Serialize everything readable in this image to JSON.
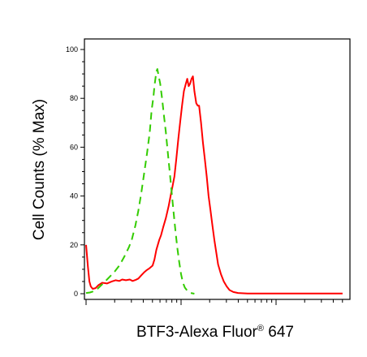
{
  "chart_data": {
    "type": "line",
    "title": "",
    "xlabel": "BTF3-Alexa Fluor",
    "xlabel_sup": "®",
    "xlabel_suffix": " 647",
    "ylabel": "Cell Counts (% Max)",
    "x_scale": "log",
    "x_tick_labels": [],
    "ylim": [
      0,
      100
    ],
    "y_ticks": [
      "0",
      "20",
      "40",
      "60",
      "80",
      "100"
    ],
    "grid": false,
    "series": [
      {
        "color": "#ff0000",
        "line_style": "solid",
        "points": [
          [
            0.0,
            20
          ],
          [
            0.02,
            11
          ],
          [
            0.035,
            5
          ],
          [
            0.05,
            3
          ],
          [
            0.07,
            2
          ],
          [
            0.1,
            2.3
          ],
          [
            0.13,
            3.5
          ],
          [
            0.17,
            4.5
          ],
          [
            0.22,
            4.2
          ],
          [
            0.27,
            5
          ],
          [
            0.31,
            5.5
          ],
          [
            0.35,
            5.2
          ],
          [
            0.38,
            5.8
          ],
          [
            0.42,
            5.5
          ],
          [
            0.46,
            5.8
          ],
          [
            0.49,
            5.2
          ],
          [
            0.52,
            5.6
          ],
          [
            0.55,
            6.2
          ],
          [
            0.58,
            7.5
          ],
          [
            0.61,
            8.7
          ],
          [
            0.64,
            9.7
          ],
          [
            0.67,
            10.5
          ],
          [
            0.7,
            11.5
          ],
          [
            0.72,
            14
          ],
          [
            0.74,
            18
          ],
          [
            0.77,
            22
          ],
          [
            0.79,
            24
          ],
          [
            0.81,
            27
          ],
          [
            0.84,
            31
          ],
          [
            0.87,
            36
          ],
          [
            0.89,
            40
          ],
          [
            0.91,
            44
          ],
          [
            0.93,
            48
          ],
          [
            0.95,
            55
          ],
          [
            0.97,
            63
          ],
          [
            0.99,
            70
          ],
          [
            1.01,
            77
          ],
          [
            1.03,
            83
          ],
          [
            1.05,
            86
          ],
          [
            1.065,
            88
          ],
          [
            1.08,
            85
          ],
          [
            1.095,
            86
          ],
          [
            1.11,
            88
          ],
          [
            1.125,
            89
          ],
          [
            1.14,
            83
          ],
          [
            1.16,
            78
          ],
          [
            1.175,
            77
          ],
          [
            1.19,
            77
          ],
          [
            1.21,
            70
          ],
          [
            1.23,
            62
          ],
          [
            1.25,
            55
          ],
          [
            1.27,
            48
          ],
          [
            1.29,
            40
          ],
          [
            1.31,
            34
          ],
          [
            1.33,
            28
          ],
          [
            1.35,
            22
          ],
          [
            1.37,
            17
          ],
          [
            1.39,
            12
          ],
          [
            1.42,
            8
          ],
          [
            1.45,
            5
          ],
          [
            1.48,
            3
          ],
          [
            1.51,
            1.5
          ],
          [
            1.55,
            0.7
          ],
          [
            1.6,
            0.3
          ],
          [
            1.7,
            0.1
          ],
          [
            2.0,
            0.05
          ],
          [
            2.3,
            0.05
          ],
          [
            2.7,
            0.05
          ]
        ]
      },
      {
        "color": "#33cc00",
        "line_style": "dashed",
        "points": [
          [
            0.0,
            0.3
          ],
          [
            0.04,
            0.5
          ],
          [
            0.08,
            1
          ],
          [
            0.12,
            2
          ],
          [
            0.16,
            3.5
          ],
          [
            0.2,
            5
          ],
          [
            0.25,
            7
          ],
          [
            0.3,
            9
          ],
          [
            0.35,
            11.5
          ],
          [
            0.4,
            15
          ],
          [
            0.45,
            19
          ],
          [
            0.48,
            22
          ],
          [
            0.52,
            28
          ],
          [
            0.55,
            34
          ],
          [
            0.58,
            41
          ],
          [
            0.61,
            49
          ],
          [
            0.64,
            57
          ],
          [
            0.67,
            66
          ],
          [
            0.69,
            75
          ],
          [
            0.71,
            81
          ],
          [
            0.72,
            85
          ],
          [
            0.73,
            88
          ],
          [
            0.74,
            91
          ],
          [
            0.75,
            92
          ],
          [
            0.76,
            90
          ],
          [
            0.78,
            86
          ],
          [
            0.8,
            80
          ],
          [
            0.82,
            73
          ],
          [
            0.84,
            66
          ],
          [
            0.86,
            58
          ],
          [
            0.88,
            50
          ],
          [
            0.9,
            42
          ],
          [
            0.92,
            34
          ],
          [
            0.94,
            26
          ],
          [
            0.96,
            19
          ],
          [
            0.98,
            13
          ],
          [
            1.0,
            8
          ],
          [
            1.02,
            4.5
          ],
          [
            1.04,
            2.5
          ],
          [
            1.07,
            1
          ],
          [
            1.1,
            0.3
          ],
          [
            1.14,
            0
          ]
        ]
      }
    ]
  }
}
